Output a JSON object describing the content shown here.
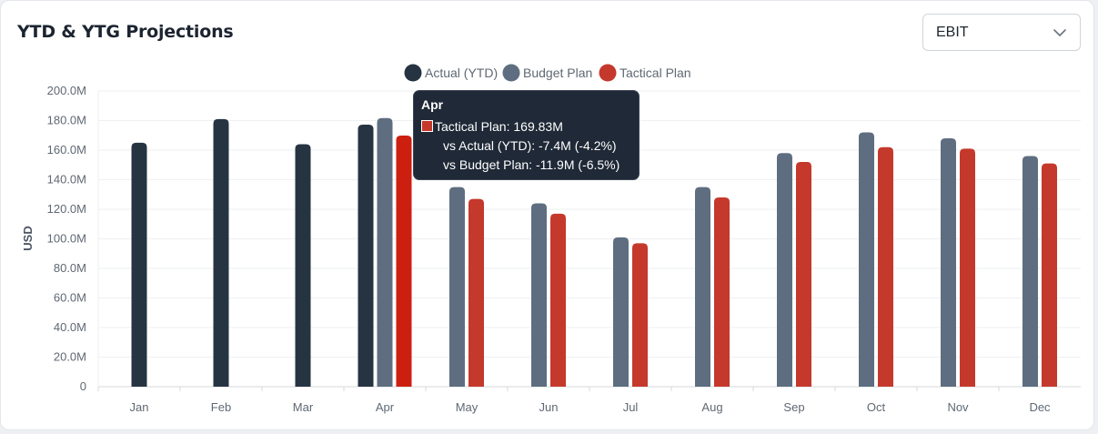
{
  "header": {
    "title": "YTD & YTG Projections"
  },
  "metric_select": {
    "value": "EBIT"
  },
  "colors": {
    "actual": "#263442",
    "budget": "#5e6e80",
    "tactical": "#c4392c",
    "tactical_highlight": "#cc1f10"
  },
  "tooltip": {
    "title": "Apr",
    "line1": "Tactical Plan: 169.83M",
    "line2": "vs Actual (YTD): -7.4M (-4.2%)",
    "line3": "vs Budget Plan: -11.9M (-6.5%)"
  },
  "chart_data": {
    "type": "bar",
    "title": "",
    "xlabel": "",
    "ylabel": "USD",
    "ylim": [
      0,
      200
    ],
    "y_ticks": [
      "0",
      "20.0M",
      "40.0M",
      "60.0M",
      "80.0M",
      "100.0M",
      "120.0M",
      "140.0M",
      "160.0M",
      "180.0M",
      "200.0M"
    ],
    "y_tick_values": [
      0,
      20,
      40,
      60,
      80,
      100,
      120,
      140,
      160,
      180,
      200
    ],
    "grid": true,
    "legend_position": "top-center",
    "categories": [
      "Jan",
      "Feb",
      "Mar",
      "Apr",
      "May",
      "Jun",
      "Jul",
      "Aug",
      "Sep",
      "Oct",
      "Nov",
      "Dec"
    ],
    "series": [
      {
        "name": "Actual (YTD)",
        "values": [
          165,
          181,
          164,
          177.2,
          null,
          null,
          null,
          null,
          null,
          null,
          null,
          null
        ]
      },
      {
        "name": "Budget Plan",
        "values": [
          null,
          null,
          null,
          181.7,
          135,
          124,
          101,
          135,
          158,
          172,
          168,
          156
        ]
      },
      {
        "name": "Tactical Plan",
        "values": [
          null,
          null,
          null,
          169.83,
          127,
          117,
          97,
          128,
          152,
          162,
          161,
          151
        ]
      }
    ]
  }
}
